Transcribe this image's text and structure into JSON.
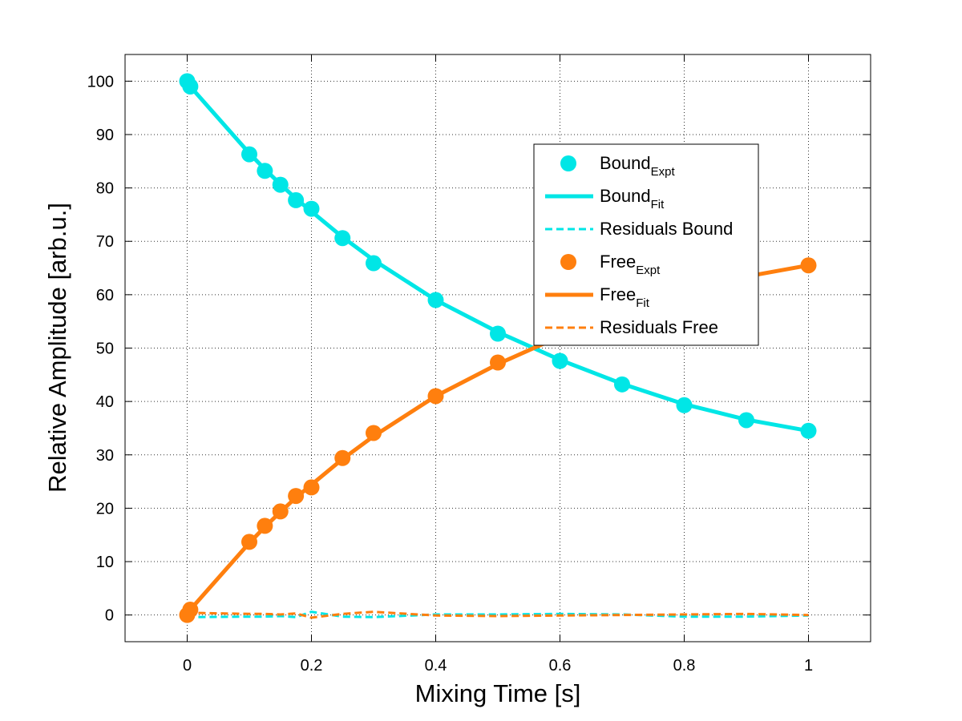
{
  "chart_data": {
    "type": "line",
    "title": "",
    "xlabel": "Mixing Time [s]",
    "ylabel": "Relative Amplitude [arb.u.]",
    "xlim": [
      -0.1,
      1.1
    ],
    "ylim": [
      -5,
      105
    ],
    "xticks": [
      0,
      0.2,
      0.4,
      0.6,
      0.8,
      1
    ],
    "xtick_labels": [
      "0",
      "0.2",
      "0.4",
      "0.6",
      "0.8",
      "1"
    ],
    "yticks": [
      0,
      10,
      20,
      30,
      40,
      50,
      60,
      70,
      80,
      90,
      100
    ],
    "ytick_labels": [
      "0",
      "10",
      "20",
      "30",
      "40",
      "50",
      "60",
      "70",
      "80",
      "90",
      "100"
    ],
    "grid": true,
    "legend_position": "upper-right",
    "series": [
      {
        "name": "Bound",
        "sub": "Expt",
        "kind": "scatter",
        "color": "#00e6e6",
        "x": [
          0,
          0.005,
          0.1,
          0.125,
          0.15,
          0.175,
          0.2,
          0.25,
          0.3,
          0.4,
          0.5,
          0.6,
          0.7,
          0.8,
          0.9,
          1.0
        ],
        "y": [
          100,
          99,
          86.3,
          83.2,
          80.6,
          77.7,
          76.1,
          70.6,
          65.9,
          59.0,
          52.7,
          47.6,
          43.2,
          39.3,
          36.5,
          34.5
        ]
      },
      {
        "name": "Bound",
        "sub": "Fit",
        "kind": "line",
        "style": "solid",
        "color": "#00e6e6",
        "x": [
          0,
          0.005,
          0.1,
          0.125,
          0.15,
          0.175,
          0.2,
          0.25,
          0.3,
          0.4,
          0.5,
          0.6,
          0.7,
          0.8,
          0.9,
          1.0
        ],
        "y": [
          99.5,
          99.0,
          86.5,
          83.5,
          80.7,
          78.0,
          75.6,
          70.8,
          66.5,
          59.0,
          53.0,
          47.8,
          43.3,
          39.5,
          36.6,
          34.5
        ]
      },
      {
        "name": "Residuals Bound",
        "sub": "",
        "kind": "line",
        "style": "dashed",
        "color": "#00e6e6",
        "x": [
          0,
          0.005,
          0.1,
          0.125,
          0.15,
          0.175,
          0.2,
          0.25,
          0.3,
          0.4,
          0.5,
          0.6,
          0.7,
          0.8,
          0.9,
          1.0
        ],
        "y": [
          -0.5,
          -0.4,
          -0.3,
          -0.3,
          -0.2,
          -0.4,
          0.6,
          -0.3,
          -0.4,
          0.1,
          0.1,
          0.2,
          0.1,
          -0.3,
          -0.3,
          -0.1
        ]
      },
      {
        "name": "Free",
        "sub": "Expt",
        "kind": "scatter",
        "color": "#ff7f0e",
        "x": [
          0,
          0.005,
          0.1,
          0.125,
          0.15,
          0.175,
          0.2,
          0.25,
          0.3,
          0.4,
          0.5,
          1.0
        ],
        "y": [
          0,
          1.0,
          13.7,
          16.7,
          19.4,
          22.3,
          23.9,
          29.4,
          34.1,
          41.0,
          47.3,
          65.5
        ]
      },
      {
        "name": "Free",
        "sub": "Fit",
        "kind": "line",
        "style": "solid",
        "color": "#ff7f0e",
        "x": [
          0,
          0.005,
          0.1,
          0.125,
          0.15,
          0.175,
          0.2,
          0.25,
          0.3,
          0.4,
          0.5,
          0.6,
          0.7,
          0.8,
          0.9,
          1.0
        ],
        "y": [
          0.5,
          1.0,
          13.5,
          16.5,
          19.3,
          22.0,
          24.4,
          29.2,
          33.5,
          41.0,
          47.0,
          52.2,
          56.7,
          60.5,
          63.4,
          65.5
        ]
      },
      {
        "name": "Residuals Free",
        "sub": "",
        "kind": "line",
        "style": "dashed",
        "color": "#ff7f0e",
        "x": [
          0,
          0.005,
          0.1,
          0.125,
          0.15,
          0.175,
          0.2,
          0.25,
          0.3,
          0.4,
          0.5,
          0.6,
          0.7,
          0.8,
          0.9,
          1.0
        ],
        "y": [
          0.5,
          0.4,
          0.2,
          0.2,
          0.1,
          0.3,
          -0.5,
          0.2,
          0.6,
          -0.1,
          -0.2,
          -0.1,
          0.0,
          0.1,
          0.2,
          0.0
        ]
      }
    ]
  }
}
